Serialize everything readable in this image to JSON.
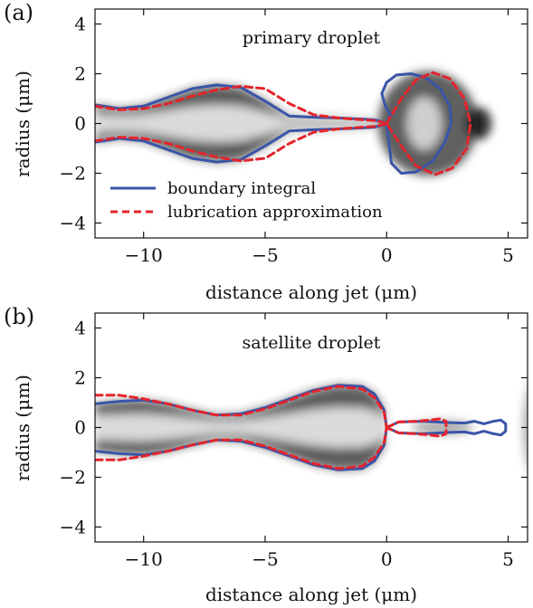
{
  "colors": {
    "boundary": "#3a55a8",
    "lubrication": "#e4242b",
    "axis": "#111111"
  },
  "chart_data": [
    {
      "type": "line",
      "panel_label": "(a)",
      "title": "primary droplet",
      "xlabel": "distance along jet (μm)",
      "ylabel": "radius (μm)",
      "xlim": [
        -12,
        5.8
      ],
      "ylim": [
        -4.6,
        4.6
      ],
      "xticks": [
        -10,
        -5,
        0,
        5
      ],
      "xtick_labels": [
        "−10",
        "−5",
        "0",
        "5"
      ],
      "yticks": [
        -4,
        -2,
        0,
        2,
        4
      ],
      "ytick_labels": [
        "−4",
        "−2",
        "0",
        "2",
        "4"
      ],
      "grid": false,
      "legend_position": "bottom-left",
      "background": "grayscale experimental image of jet and primary droplet",
      "series": [
        {
          "name": "boundary integral",
          "style": "solid",
          "color": "#3a55a8",
          "x": [
            -12,
            -11,
            -10,
            -9,
            -8,
            -7,
            -6,
            -5,
            -4,
            -3,
            -2,
            -1,
            -0.5,
            -0.2,
            0
          ],
          "y": [
            0.75,
            0.6,
            0.7,
            1.05,
            1.4,
            1.55,
            1.45,
            0.9,
            0.3,
            0.25,
            0.22,
            0.18,
            0.15,
            0.08,
            0
          ],
          "bulb_x": [
            0,
            0.15,
            -0.05,
            -0.2,
            0.0,
            0.4,
            1.0,
            1.6,
            2.2,
            2.6,
            2.65,
            2.4,
            1.9,
            1.2,
            0.6,
            0.2,
            0
          ],
          "bulb_y": [
            0,
            0.35,
            0.7,
            1.2,
            1.65,
            1.95,
            2.0,
            1.85,
            1.4,
            0.7,
            0.0,
            -0.75,
            -1.5,
            -1.95,
            -2.0,
            -1.6,
            0
          ]
        },
        {
          "name": "lubrication approximation",
          "style": "dashed",
          "color": "#e4242b",
          "x": [
            -12,
            -11,
            -10,
            -9,
            -8,
            -7,
            -6,
            -5,
            -4,
            -3,
            -2,
            -1,
            -0.5,
            -0.2,
            0
          ],
          "y": [
            0.7,
            0.55,
            0.6,
            0.8,
            1.1,
            1.35,
            1.5,
            1.4,
            0.8,
            0.35,
            0.22,
            0.15,
            0.12,
            0.06,
            0
          ],
          "bulb_x": [
            0,
            0.6,
            1.2,
            1.9,
            2.6,
            3.2,
            3.45,
            3.3,
            2.7,
            2.0,
            1.2,
            0.6,
            0
          ],
          "bulb_y": [
            0,
            1.0,
            1.75,
            2.05,
            1.8,
            1.0,
            0.0,
            -1.0,
            -1.8,
            -2.05,
            -1.7,
            -0.9,
            0
          ]
        }
      ]
    },
    {
      "type": "line",
      "panel_label": "(b)",
      "title": "satellite droplet",
      "xlabel": "distance along jet (μm)",
      "ylabel": "radius (μm)",
      "xlim": [
        -12,
        5.8
      ],
      "ylim": [
        -4.6,
        4.6
      ],
      "xticks": [
        -10,
        -5,
        0,
        5
      ],
      "xtick_labels": [
        "−10",
        "−5",
        "0",
        "5"
      ],
      "yticks": [
        -4,
        -2,
        0,
        2,
        4
      ],
      "ytick_labels": [
        "−4",
        "−2",
        "0",
        "2",
        "4"
      ],
      "grid": false,
      "background": "grayscale experimental image of jet and satellite droplet",
      "series": [
        {
          "name": "boundary integral",
          "style": "solid",
          "color": "#3a55a8",
          "x": [
            -12,
            -11,
            -10,
            -9,
            -8,
            -7,
            -6,
            -5,
            -4,
            -3,
            -2,
            -1,
            -0.5,
            -0.1,
            0
          ],
          "y": [
            0.95,
            1.05,
            1.1,
            0.95,
            0.7,
            0.5,
            0.55,
            0.8,
            1.15,
            1.5,
            1.7,
            1.65,
            1.35,
            0.7,
            0
          ],
          "tail_x": [
            0,
            0.5,
            1.5,
            2.5,
            3.2,
            3.6,
            4.0,
            4.4,
            4.7,
            4.9,
            4.9,
            4.7,
            4.4,
            4.0,
            3.6,
            3.2,
            2.5,
            1.5,
            0.5,
            0
          ],
          "tail_y": [
            0,
            0.22,
            0.25,
            0.2,
            0.18,
            0.25,
            0.15,
            0.25,
            0.3,
            0.15,
            -0.15,
            -0.3,
            -0.25,
            -0.15,
            -0.25,
            -0.18,
            -0.2,
            -0.25,
            -0.22,
            0
          ]
        },
        {
          "name": "lubrication approximation",
          "style": "dashed",
          "color": "#e4242b",
          "x": [
            -12,
            -11,
            -10,
            -9,
            -8,
            -7,
            -6,
            -5,
            -4,
            -3,
            -2,
            -1,
            -0.5,
            -0.1,
            0
          ],
          "y": [
            1.3,
            1.3,
            1.15,
            0.95,
            0.7,
            0.5,
            0.5,
            0.75,
            1.1,
            1.45,
            1.65,
            1.55,
            1.2,
            0.6,
            0
          ],
          "tail_x": [
            0,
            0.5,
            1.2,
            1.8,
            2.2,
            2.45,
            2.45,
            2.2,
            1.8,
            1.2,
            0.5,
            0
          ],
          "tail_y": [
            0,
            0.22,
            0.25,
            0.3,
            0.35,
            0.25,
            -0.25,
            -0.35,
            -0.3,
            -0.25,
            -0.22,
            0
          ]
        }
      ]
    }
  ],
  "legend": {
    "items": [
      {
        "label": "boundary integral",
        "style": "solid",
        "color": "#3a55a8"
      },
      {
        "label": "lubrication approximation",
        "style": "dashed",
        "color": "#e4242b"
      }
    ]
  }
}
